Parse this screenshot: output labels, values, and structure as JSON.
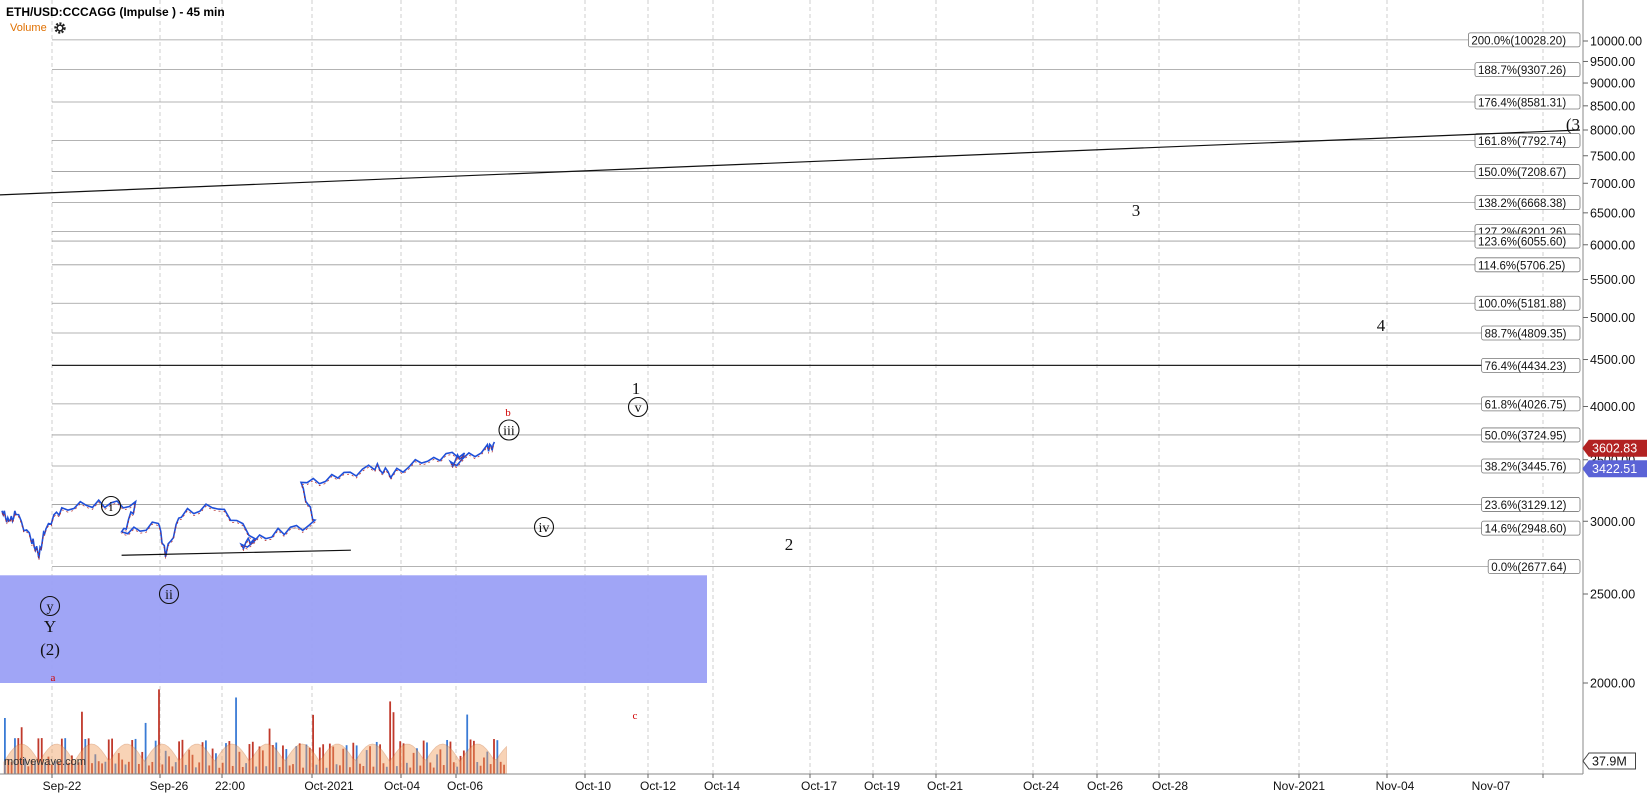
{
  "header": {
    "title": "ETH/USD:CCCAGG (Impulse ) - 45 min",
    "volume_label": "Volume",
    "settings_icon": "gear-icon"
  },
  "watermark": "motivewave.com",
  "colors": {
    "grid": "#cfcfcf",
    "fib_line": "#9a9a9a",
    "box": "#9ba0f5",
    "price_up": "#1f4fd8",
    "price_down": "#b22222",
    "volume_up": "#3a7bd5",
    "volume_down": "#c0392b",
    "volume_avg": "#f0a060",
    "wave_red": "#d00000",
    "badge_blue": "#5b63d6"
  },
  "chart_data": {
    "type": "line",
    "scale": "log",
    "ylim": [
      1850,
      10800
    ],
    "x_ticks": [
      "Sep-22",
      "Sep-26",
      "22:00",
      "Oct-2021",
      "Oct-04",
      "Oct-06",
      "Oct-10",
      "Oct-12",
      "Oct-14",
      "Oct-17",
      "Oct-19",
      "Oct-21",
      "Oct-24",
      "Oct-26",
      "Oct-28",
      "Nov-2021",
      "Nov-04",
      "Nov-07"
    ],
    "y_ticks": [
      "10000.00",
      "9500.00",
      "9000.00",
      "8500.00",
      "8000.00",
      "7500.00",
      "7000.00",
      "6500.00",
      "6000.00",
      "5500.00",
      "5000.00",
      "4500.00",
      "4000.00",
      "3500.00",
      "3000.00",
      "2500.00",
      "2000.00"
    ],
    "fib_levels": [
      {
        "label": "200.0%(10028.20)",
        "price": 10028.2
      },
      {
        "label": "188.7%(9307.26)",
        "price": 9307.26
      },
      {
        "label": "176.4%(8581.31)",
        "price": 8581.31
      },
      {
        "label": "161.8%(7792.74)",
        "price": 7792.74
      },
      {
        "label": "150.0%(7208.67)",
        "price": 7208.67
      },
      {
        "label": "138.2%(6668.38)",
        "price": 6668.38
      },
      {
        "label": "127.2%(6201.26)",
        "price": 6201.26
      },
      {
        "label": "123.6%(6055.60)",
        "price": 6055.6
      },
      {
        "label": "114.6%(5706.25)",
        "price": 5706.25
      },
      {
        "label": "100.0%(5181.88)",
        "price": 5181.88
      },
      {
        "label": "88.7%(4809.35)",
        "price": 4809.35
      },
      {
        "label": "76.4%(4434.23)",
        "price": 4434.23
      },
      {
        "label": "61.8%(4026.75)",
        "price": 4026.75
      },
      {
        "label": "50.0%(3724.95)",
        "price": 3724.95
      },
      {
        "label": "38.2%(3445.76)",
        "price": 3445.76
      },
      {
        "label": "23.6%(3129.12)",
        "price": 3129.12
      },
      {
        "label": "14.6%(2948.60)",
        "price": 2948.6
      },
      {
        "label": "0.0%(2677.64)",
        "price": 2677.64
      }
    ],
    "price_badges": [
      {
        "label": "3602.83",
        "price": 3602.83,
        "color": "#b22222"
      },
      {
        "label": "3422.51",
        "price": 3422.51,
        "color": "#5b63d6"
      },
      {
        "label": "37.9M",
        "role": "volume",
        "color": "#333333"
      }
    ],
    "price_path": [
      [
        "Sep-21",
        3080
      ],
      [
        "Sep-21",
        2990
      ],
      [
        "Sep-21",
        3060
      ],
      [
        "Sep-22",
        2860
      ],
      [
        "Sep-22",
        2760
      ],
      [
        "Sep-22",
        2960
      ],
      [
        "Sep-23",
        3100
      ],
      [
        "Sep-24",
        3140
      ],
      [
        "Sep-25",
        3120
      ],
      [
        "Sep-25",
        2900
      ],
      [
        "Sep-26",
        2980
      ],
      [
        "Sep-26",
        2760
      ],
      [
        "Sep-27",
        3060
      ],
      [
        "Sep-28",
        3120
      ],
      [
        "Sep-29",
        2880
      ],
      [
        "Sep-29",
        2820
      ],
      [
        "Sep-30",
        2920
      ],
      [
        "Oct-01",
        2980
      ],
      [
        "Oct-01",
        3290
      ],
      [
        "Oct-02",
        3350
      ],
      [
        "Oct-03",
        3440
      ],
      [
        "Oct-04",
        3380
      ],
      [
        "Oct-05",
        3510
      ],
      [
        "Oct-06",
        3560
      ],
      [
        "Oct-06",
        3460
      ],
      [
        "Oct-07",
        3600
      ],
      [
        "Oct-07",
        3630
      ]
    ],
    "wave_labels": [
      "y",
      "Y",
      "(2)",
      "a",
      "i",
      "ii",
      "iii",
      "iv",
      "v",
      "1",
      "2",
      "3",
      "4",
      "b",
      "c",
      "(3"
    ]
  }
}
